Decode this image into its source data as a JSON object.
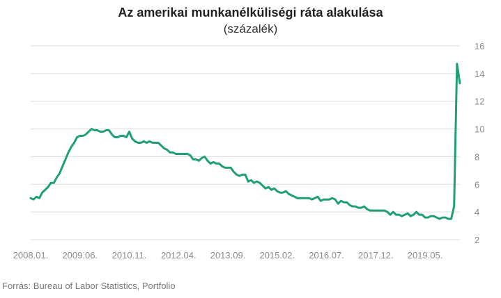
{
  "title": "Az amerikai munkanélküliségi ráta alakulása",
  "subtitle": "(százalék)",
  "source": "Forrás: Bureau of Labor Statistics, Portfolio",
  "colors": {
    "line": "#1f9e78",
    "grid": "#dddddd",
    "tick": "#8a8a8a"
  },
  "chart_data": {
    "type": "line",
    "title": "Az amerikai munkanélküliségi ráta alakulása",
    "subtitle": "(százalék)",
    "xlabel": "",
    "ylabel": "",
    "y_axis_position": "right",
    "ylim": [
      2,
      16
    ],
    "yticks": [
      2,
      4,
      6,
      8,
      10,
      12,
      14,
      16
    ],
    "grid": "horizontal",
    "legend": "none",
    "xticks": [
      {
        "label": "2008.01.",
        "date": "2008-01"
      },
      {
        "label": "2009.06.",
        "date": "2009-06"
      },
      {
        "label": "2010.11.",
        "date": "2010-11"
      },
      {
        "label": "2012.04.",
        "date": "2012-04"
      },
      {
        "label": "2013.09.",
        "date": "2013-09"
      },
      {
        "label": "2015.02.",
        "date": "2015-02"
      },
      {
        "label": "2016.07.",
        "date": "2016-07"
      },
      {
        "label": "2017.12.",
        "date": "2017-12"
      },
      {
        "label": "2019.05.",
        "date": "2019-05"
      }
    ],
    "x_start": "2008-01",
    "values": [
      5.0,
      4.9,
      5.1,
      5.0,
      5.4,
      5.6,
      5.8,
      6.1,
      6.1,
      6.5,
      6.8,
      7.3,
      7.8,
      8.3,
      8.7,
      9.0,
      9.4,
      9.5,
      9.5,
      9.6,
      9.8,
      10.0,
      9.9,
      9.9,
      9.8,
      9.8,
      9.9,
      9.9,
      9.6,
      9.4,
      9.4,
      9.5,
      9.5,
      9.4,
      9.8,
      9.3,
      9.1,
      9.0,
      9.0,
      9.1,
      9.0,
      9.1,
      9.0,
      9.0,
      9.0,
      8.8,
      8.6,
      8.5,
      8.3,
      8.3,
      8.2,
      8.2,
      8.2,
      8.2,
      8.2,
      8.1,
      7.8,
      7.8,
      7.7,
      7.9,
      8.0,
      7.7,
      7.5,
      7.6,
      7.5,
      7.5,
      7.3,
      7.2,
      7.2,
      7.2,
      6.9,
      6.7,
      6.6,
      6.7,
      6.7,
      6.2,
      6.3,
      6.1,
      6.2,
      6.1,
      5.9,
      5.7,
      5.8,
      5.6,
      5.7,
      5.5,
      5.4,
      5.4,
      5.5,
      5.3,
      5.2,
      5.1,
      5.0,
      5.0,
      5.0,
      5.0,
      5.0,
      4.9,
      5.0,
      5.1,
      4.8,
      4.9,
      4.9,
      4.9,
      5.0,
      4.9,
      4.6,
      4.8,
      4.7,
      4.7,
      4.5,
      4.4,
      4.4,
      4.3,
      4.3,
      4.4,
      4.2,
      4.1,
      4.1,
      4.1,
      4.1,
      4.1,
      4.1,
      4.0,
      3.8,
      4.0,
      3.8,
      3.8,
      3.7,
      3.8,
      3.9,
      3.7,
      3.8,
      4.0,
      3.8,
      3.8,
      3.6,
      3.6,
      3.7,
      3.7,
      3.6,
      3.5,
      3.6,
      3.6,
      3.5,
      3.5,
      4.4,
      14.7,
      13.3
    ]
  }
}
